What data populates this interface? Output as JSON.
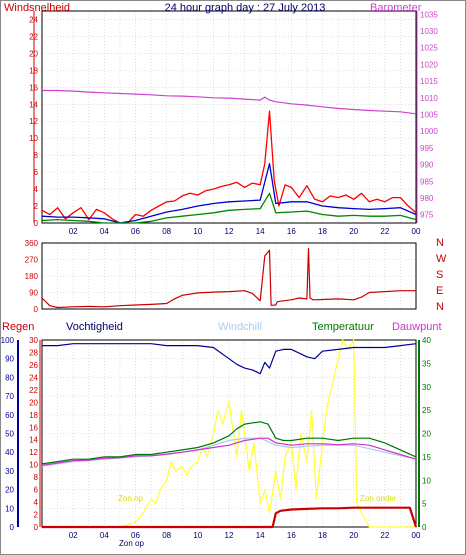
{
  "header": {
    "title": "24 hour graph day : 27 July 2013",
    "left_label": "Windsnelheid",
    "right_label": "Barometer"
  },
  "rain_header": {
    "regen": "Regen",
    "vochtigheid": "Vochtigheid",
    "windchill": "Windchill",
    "temperatuur": "Temperatuur",
    "dauwpunt": "Dauwpunt"
  },
  "annotations": {
    "sunrise": "Zon op",
    "sunset": "Zon onder",
    "sunrise_axis": "Zon op"
  },
  "colors": {
    "wind": "#ff0000",
    "wind_avg": "#0000cc",
    "wind_min": "#008800",
    "barometer": "#cc44cc",
    "direction": "#cc0000",
    "humidity": "#000099",
    "windchill": "#aaccee",
    "temperature": "#007700",
    "dewpoint": "#cc33cc",
    "rain": "#cc0000",
    "solar": "#ffff33",
    "left_axis": "#cc0000",
    "right_axis": "#cc44cc"
  },
  "chart_data": [
    {
      "type": "line",
      "panel": "wind_barometer",
      "xlabel": "",
      "x_ticks": [
        "02",
        "04",
        "06",
        "08",
        "10",
        "12",
        "14",
        "16",
        "18",
        "20",
        "22",
        "00"
      ],
      "y_left_ticks": [
        0,
        2,
        4,
        6,
        8,
        10,
        12,
        14,
        16,
        18,
        20,
        22,
        24
      ],
      "y_left_range": [
        0,
        25
      ],
      "y_right_ticks": [
        975,
        980,
        985,
        990,
        995,
        1000,
        1005,
        1010,
        1015,
        1020,
        1025,
        1030,
        1035
      ],
      "y_right_range": [
        972.5,
        1036
      ],
      "series": [
        {
          "key": "barometer",
          "axis": "right",
          "x": [
            0,
            1,
            2,
            3,
            4,
            5,
            6,
            7,
            8,
            9,
            10,
            11,
            12,
            13,
            14,
            14.3,
            14.6,
            15,
            16,
            17,
            18,
            19,
            20,
            21,
            22,
            23,
            24
          ],
          "values": [
            1012.2,
            1012.2,
            1012,
            1011.7,
            1011.5,
            1011.3,
            1011.1,
            1010.9,
            1010.6,
            1010.5,
            1010.3,
            1010,
            1009.9,
            1009.6,
            1009.3,
            1010.2,
            1009.3,
            1008.8,
            1008.2,
            1007.8,
            1007.3,
            1006.8,
            1006.5,
            1006.2,
            1006,
            1005.8,
            1005.2
          ]
        },
        {
          "key": "wind",
          "axis": "left",
          "x": [
            0,
            0.5,
            1,
            1.5,
            2,
            2.5,
            3,
            3.5,
            4,
            4.5,
            5,
            5.5,
            6,
            6.5,
            7,
            7.5,
            8,
            8.5,
            9,
            9.5,
            10,
            10.5,
            11,
            11.5,
            12,
            12.5,
            13,
            13.5,
            14,
            14.3,
            14.6,
            14.9,
            15.2,
            15.6,
            16,
            16.5,
            17,
            17.5,
            18,
            18.5,
            19,
            19.5,
            20,
            20.5,
            21,
            21.5,
            22,
            22.5,
            23,
            23.5,
            24
          ],
          "values": [
            1.5,
            1,
            1.8,
            0.5,
            1.2,
            1.8,
            0.4,
            1.6,
            1.2,
            0.5,
            0,
            0,
            1,
            0.8,
            1.5,
            2,
            2.5,
            2.6,
            3.2,
            3.5,
            3.3,
            3.8,
            4,
            4.3,
            4.5,
            4.8,
            4.2,
            4.7,
            4.5,
            7,
            13.2,
            5,
            2,
            4.5,
            4.2,
            3,
            4.4,
            2.8,
            2.5,
            3.2,
            3,
            3.3,
            2.8,
            3.5,
            2.5,
            2.8,
            2.5,
            3,
            3,
            2,
            1.2
          ]
        },
        {
          "key": "wind_avg",
          "axis": "left",
          "x": [
            0,
            1,
            2,
            3,
            4,
            5,
            6,
            7,
            8,
            9,
            10,
            11,
            12,
            13,
            14,
            14.6,
            15,
            16,
            17,
            18,
            19,
            20,
            21,
            22,
            23,
            24
          ],
          "values": [
            0.8,
            0.7,
            0.7,
            0.6,
            0.5,
            0,
            0.3,
            0.8,
            1.3,
            1.6,
            2,
            2.3,
            2.5,
            2.6,
            2.7,
            7,
            2.3,
            2.5,
            2.5,
            2,
            1.8,
            1.7,
            1.6,
            1.7,
            1.8,
            1
          ]
        },
        {
          "key": "wind_min",
          "axis": "left",
          "x": [
            0,
            1,
            2,
            3,
            4,
            5,
            6,
            7,
            8,
            9,
            10,
            11,
            12,
            13,
            14,
            14.6,
            15,
            16,
            17,
            18,
            19,
            20,
            21,
            22,
            23,
            24
          ],
          "values": [
            0.3,
            0.4,
            0.3,
            0.2,
            0,
            0,
            0,
            0.2,
            0.6,
            0.8,
            1,
            1.2,
            1.5,
            1.6,
            1.7,
            3.5,
            1.2,
            1.3,
            1.4,
            1,
            0.8,
            0.9,
            0.8,
            0.8,
            0.9,
            0.4
          ]
        }
      ]
    },
    {
      "type": "line",
      "panel": "wind_direction",
      "y_ticks": [
        0,
        90,
        180,
        270,
        360
      ],
      "y_range": [
        0,
        360
      ],
      "y_right_labels": [
        "N",
        "W",
        "S",
        "E",
        "N"
      ],
      "series": [
        {
          "key": "direction",
          "x": [
            0,
            0.5,
            1,
            2,
            3,
            4,
            5,
            6,
            7,
            8,
            8.5,
            9,
            10,
            11,
            12,
            13,
            13.5,
            14,
            14.3,
            14.6,
            14.7,
            15,
            15.1,
            15.5,
            16,
            16.5,
            17,
            17.1,
            17.2,
            17.4,
            18,
            19,
            20,
            20.5,
            21,
            22,
            23,
            24
          ],
          "values": [
            60,
            18,
            8,
            12,
            14,
            12,
            18,
            22,
            25,
            30,
            55,
            75,
            88,
            92,
            95,
            100,
            85,
            45,
            290,
            320,
            20,
            22,
            40,
            45,
            50,
            60,
            55,
            330,
            60,
            50,
            52,
            55,
            50,
            65,
            90,
            95,
            100,
            100
          ]
        }
      ]
    },
    {
      "type": "line",
      "panel": "rain_temperature",
      "y_left_ticks": [
        0,
        2,
        4,
        6,
        8,
        10,
        12,
        14,
        16,
        18,
        20,
        22,
        24,
        26,
        28,
        30
      ],
      "y_left_range": [
        0,
        30
      ],
      "y_humidity_ticks": [
        0,
        10,
        20,
        30,
        40,
        50,
        60,
        70,
        80,
        90,
        100
      ],
      "y_humidity_range": [
        0,
        100
      ],
      "y_right_ticks": [
        0,
        5,
        10,
        15,
        20,
        25,
        30,
        35,
        40
      ],
      "y_right_range": [
        0,
        40
      ],
      "series": [
        {
          "key": "humidity",
          "axis": "humidity",
          "x": [
            0,
            1,
            2,
            3,
            4,
            5,
            6,
            7,
            8,
            9,
            10,
            11,
            11.5,
            12,
            12.5,
            13,
            13.5,
            14,
            14.3,
            14.6,
            15,
            15.5,
            16,
            16.5,
            17,
            17.5,
            18,
            19,
            20,
            21,
            22,
            23,
            24
          ],
          "values": [
            97,
            97,
            98,
            98,
            98,
            98,
            98,
            98,
            97,
            97,
            97,
            96,
            93,
            90,
            87,
            85,
            84,
            82,
            88,
            85,
            94,
            95,
            95,
            93,
            91,
            90,
            94,
            95,
            96,
            96,
            96,
            97,
            98
          ]
        },
        {
          "key": "temperature",
          "axis": "right",
          "x": [
            0,
            1,
            2,
            3,
            4,
            5,
            6,
            7,
            8,
            9,
            10,
            11,
            12,
            12.5,
            13,
            14,
            14.5,
            15,
            15.5,
            16,
            17,
            18,
            19,
            20,
            21,
            22,
            23,
            24
          ],
          "values": [
            13.5,
            14,
            14.5,
            14.5,
            15,
            15,
            15.5,
            15.5,
            16,
            16.5,
            17,
            18,
            19.5,
            21,
            22,
            22.5,
            22,
            19,
            18.5,
            18.5,
            19,
            19,
            18.5,
            19,
            19,
            18,
            16.5,
            15
          ]
        },
        {
          "key": "windchill",
          "axis": "right",
          "x": [
            0,
            2,
            4,
            6,
            8,
            10,
            12,
            13,
            14,
            15,
            16,
            18,
            20,
            22,
            24
          ],
          "values": [
            13,
            14,
            14.5,
            15,
            15.5,
            16.5,
            18.5,
            19,
            19,
            17.5,
            17,
            17.5,
            17.5,
            16,
            14.5
          ]
        },
        {
          "key": "dewpoint",
          "axis": "right",
          "x": [
            0,
            1,
            2,
            3,
            4,
            5,
            6,
            7,
            8,
            9,
            10,
            11,
            12,
            13,
            14,
            14.5,
            15,
            16,
            17,
            18,
            19,
            20,
            21,
            22,
            23,
            24
          ],
          "values": [
            13.2,
            13.7,
            14.2,
            14.3,
            14.7,
            14.8,
            15.2,
            15.2,
            15.6,
            16,
            16.5,
            17,
            17.5,
            18.5,
            19,
            19,
            18,
            17.5,
            17.8,
            17.8,
            17.6,
            17.8,
            17.5,
            16.5,
            15.5,
            14.5
          ]
        },
        {
          "key": "solar",
          "axis": "right",
          "x": [
            0,
            5,
            5.5,
            6,
            6.5,
            7,
            7.3,
            7.6,
            8,
            8.3,
            8.6,
            9,
            9.3,
            9.6,
            10,
            10.3,
            10.6,
            11,
            11.3,
            11.6,
            12,
            12.2,
            12.5,
            12.8,
            13,
            13.3,
            13.6,
            14,
            14.3,
            14.6,
            15,
            15.3,
            15.6,
            16,
            16.3,
            16.6,
            17,
            17.3,
            17.6,
            18,
            18.3,
            18.6,
            19,
            19.3,
            19.6,
            20,
            20.2,
            21,
            22,
            23,
            24
          ],
          "values": [
            0,
            0,
            0.5,
            1,
            3,
            6,
            5,
            8,
            10,
            14,
            12,
            13,
            11,
            13,
            14,
            17,
            15,
            20,
            25,
            22,
            27,
            22,
            15,
            25,
            20,
            12,
            18,
            5,
            8,
            3,
            12,
            6,
            15,
            18,
            8,
            20,
            14,
            25,
            6,
            18,
            26,
            30,
            36,
            40,
            38,
            40,
            5,
            0,
            0,
            0,
            0
          ]
        },
        {
          "key": "rain",
          "axis": "left",
          "x": [
            0,
            14.8,
            15,
            15.3,
            16,
            17,
            18,
            19,
            20,
            21,
            22,
            23,
            23.6,
            24
          ],
          "values": [
            0,
            0,
            2.2,
            2.6,
            2.8,
            2.9,
            3.0,
            3.0,
            3.1,
            3.1,
            3.1,
            3.1,
            3.1,
            0
          ]
        }
      ]
    }
  ]
}
